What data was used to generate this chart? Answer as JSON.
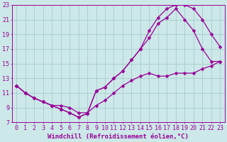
{
  "xlabel": "Windchill (Refroidissement éolien,°C)",
  "xlim": [
    -0.5,
    23.5
  ],
  "ylim": [
    7,
    23
  ],
  "yticks": [
    7,
    9,
    11,
    13,
    15,
    17,
    19,
    21,
    23
  ],
  "xticks": [
    0,
    1,
    2,
    3,
    4,
    5,
    6,
    7,
    8,
    9,
    10,
    11,
    12,
    13,
    14,
    15,
    16,
    17,
    18,
    19,
    20,
    21,
    22,
    23
  ],
  "bg_color": "#cce8e8",
  "grid_color": "#aacccc",
  "line_color": "#990099",
  "line1_x": [
    0,
    1,
    2,
    3,
    4,
    5,
    6,
    7,
    8,
    9,
    10,
    11,
    12,
    13,
    14,
    15,
    16,
    17,
    18,
    19,
    20,
    21,
    22,
    23
  ],
  "line1_y": [
    12.0,
    11.0,
    10.3,
    9.8,
    9.3,
    8.8,
    8.3,
    7.7,
    8.2,
    11.3,
    11.8,
    13.0,
    14.0,
    15.5,
    17.0,
    19.5,
    21.3,
    22.5,
    23.0,
    23.0,
    22.5,
    21.0,
    19.0,
    17.3
  ],
  "line2_x": [
    0,
    1,
    2,
    3,
    4,
    5,
    6,
    7,
    8,
    9,
    10,
    11,
    12,
    13,
    14,
    15,
    16,
    17,
    18,
    19,
    20,
    21,
    22,
    23
  ],
  "line2_y": [
    12.0,
    11.0,
    10.3,
    9.8,
    9.3,
    8.8,
    8.3,
    7.7,
    8.2,
    11.3,
    11.8,
    13.0,
    14.0,
    15.5,
    17.0,
    18.5,
    20.5,
    21.3,
    22.5,
    21.0,
    19.5,
    17.0,
    15.3,
    15.3
  ],
  "line3_x": [
    0,
    1,
    2,
    3,
    4,
    5,
    6,
    7,
    8,
    9,
    10,
    11,
    12,
    13,
    14,
    15,
    16,
    17,
    18,
    19,
    20,
    21,
    22,
    23
  ],
  "line3_y": [
    12.0,
    11.0,
    10.3,
    9.8,
    9.3,
    9.3,
    9.0,
    8.3,
    8.3,
    9.3,
    10.0,
    11.0,
    12.0,
    12.7,
    13.3,
    13.7,
    13.3,
    13.3,
    13.7,
    13.7,
    13.7,
    14.3,
    14.7,
    15.3
  ],
  "marker": "D",
  "marker_size": 2.5,
  "lw": 0.9,
  "font_size": 6.5
}
